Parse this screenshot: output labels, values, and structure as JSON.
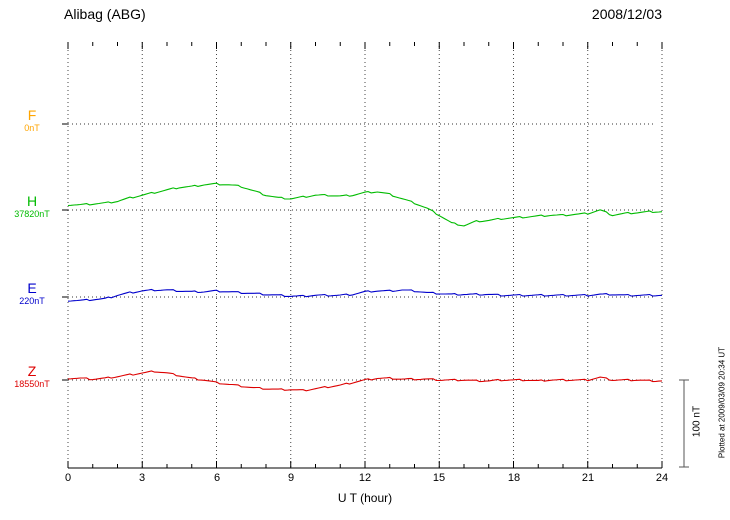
{
  "header": {
    "station": "Alibag (ABG)",
    "date": "2008/12/03"
  },
  "axis": {
    "xlabel": "U T (hour)",
    "tick_labels": [
      "0",
      "3",
      "6",
      "9",
      "12",
      "15",
      "18",
      "21",
      "24"
    ]
  },
  "scale_bar": {
    "label": "100 nT",
    "nT": 100
  },
  "plot_note": "Plotted at 2009/03/09 20:34 UT",
  "components": [
    {
      "label": "F",
      "baseline": "0nT",
      "color": "#FFA500"
    },
    {
      "label": "H",
      "baseline": "37820nT",
      "color": "#00BB00"
    },
    {
      "label": "E",
      "baseline": "220nT",
      "color": "#0000CC"
    },
    {
      "label": "Z",
      "baseline": "18550nT",
      "color": "#DD0000"
    }
  ],
  "chart_data": {
    "type": "line",
    "title": "Alibag (ABG) magnetogram 2008/12/03",
    "xlabel": "U T (hour)",
    "x_start_hour": 0,
    "x_end_hour": 24,
    "x_step_hours": 0.5,
    "x_ticks": [
      0,
      3,
      6,
      9,
      12,
      15,
      18,
      21,
      24
    ],
    "scale_bar_nT": 100,
    "grid": "dotted vertical lines every 3 hours; dotted horizontal baseline per component",
    "series": [
      {
        "name": "F",
        "baseline_label": "0nT",
        "color": "#FFA500",
        "values_nT_offset": []
      },
      {
        "name": "H",
        "baseline_label": "37820nT",
        "color": "#00BB00",
        "values_nT_offset": [
          6,
          6,
          7,
          8,
          10,
          14,
          17,
          20,
          23,
          26,
          27,
          29,
          30,
          29,
          27,
          22,
          17,
          14,
          13,
          15,
          17,
          17,
          16,
          17,
          20,
          21,
          18,
          13,
          8,
          2,
          -6,
          -15,
          -18,
          -13,
          -12,
          -10,
          -9,
          -8,
          -7,
          -6,
          -6,
          -5,
          -4,
          0,
          -6,
          -4,
          -3,
          -2,
          -2
        ]
      },
      {
        "name": "E",
        "baseline_label": "220nT",
        "color": "#0000CC",
        "values_nT_offset": [
          -4,
          -4,
          -3,
          -2,
          2,
          5,
          7,
          8,
          8,
          7,
          6,
          6,
          7,
          6,
          5,
          4,
          3,
          2,
          1,
          1,
          2,
          2,
          2,
          3,
          6,
          7,
          7,
          8,
          7,
          5,
          4,
          3,
          3,
          3,
          3,
          2,
          2,
          2,
          2,
          2,
          2,
          2,
          2,
          3,
          3,
          2,
          2,
          2,
          2
        ]
      },
      {
        "name": "Z",
        "baseline_label": "18550nT",
        "color": "#DD0000",
        "values_nT_offset": [
          2,
          2,
          1,
          2,
          4,
          6,
          8,
          10,
          8,
          5,
          2,
          0,
          -3,
          -5,
          -7,
          -9,
          -10,
          -11,
          -11,
          -12,
          -10,
          -8,
          -6,
          -3,
          0,
          2,
          2,
          1,
          1,
          1,
          0,
          0,
          0,
          -1,
          -1,
          0,
          0,
          0,
          -1,
          0,
          0,
          0,
          0,
          3,
          0,
          0,
          0,
          -1,
          -1
        ]
      }
    ]
  }
}
